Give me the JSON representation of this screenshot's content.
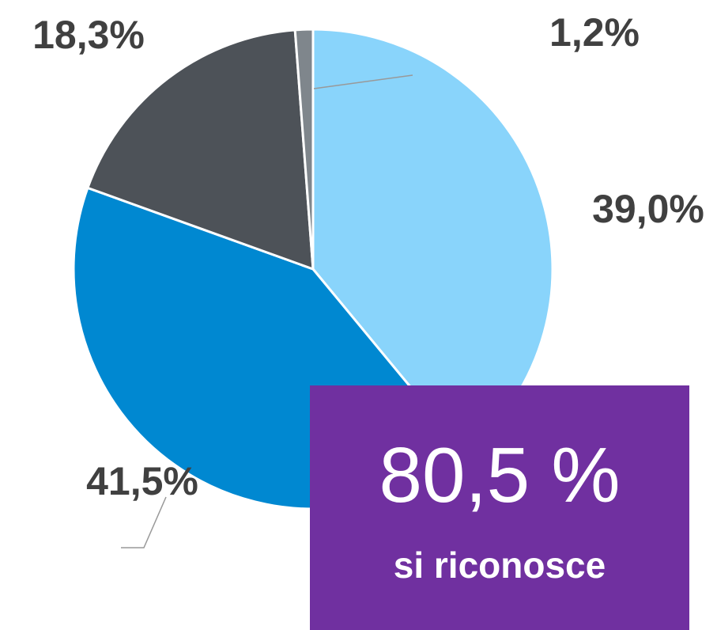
{
  "chart_data": {
    "type": "pie",
    "values": [
      39.0,
      41.5,
      18.3,
      1.2
    ],
    "value_labels": [
      "39,0%",
      "41,5%",
      "18,3%",
      "1,2%"
    ],
    "colors": [
      "#89d4fb",
      "#0088d1",
      "#4d5258",
      "#7f868c"
    ],
    "annotations": [
      "80,5 %",
      "si riconosce"
    ],
    "annotation_color": "#7030a0"
  }
}
